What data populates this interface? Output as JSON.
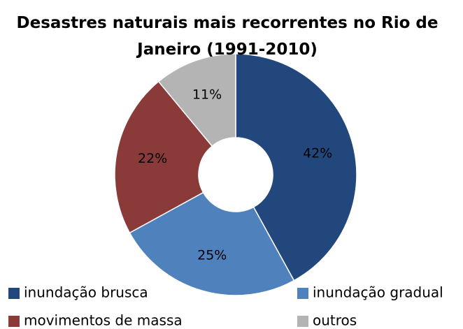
{
  "chart_data": {
    "type": "donut",
    "title": "Desastres naturais mais recorrentes no Rio de Janeiro (1991-2010)",
    "categories": [
      "inundação brusca",
      "inundação gradual",
      "movimentos de massa",
      "outros"
    ],
    "values": [
      42,
      25,
      22,
      11
    ],
    "value_labels": [
      "42%",
      "25%",
      "22%",
      "11%"
    ],
    "colors": [
      "#21477c",
      "#4f81bd",
      "#8b3a3a",
      "#b4b4b4"
    ],
    "legend": "bottom"
  }
}
